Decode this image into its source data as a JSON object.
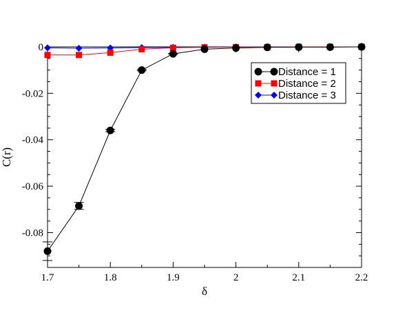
{
  "chart_data": {
    "type": "line",
    "title": "",
    "xlabel": "δ",
    "ylabel": "C(r)",
    "xlim": [
      1.7,
      2.2
    ],
    "ylim": [
      -0.095,
      0.0
    ],
    "x_ticks": [
      "1.7",
      "1.8",
      "1.9",
      "2",
      "2.1",
      "2.2"
    ],
    "x_tick_values": [
      1.7,
      1.8,
      1.9,
      2.0,
      2.1,
      2.2
    ],
    "y_ticks": [
      "0",
      "-0.02",
      "-0.04",
      "-0.06",
      "-0.08"
    ],
    "y_tick_values": [
      0,
      -0.02,
      -0.04,
      -0.06,
      -0.08
    ],
    "grid": false,
    "legend_position": "top-right",
    "x": [
      1.7,
      1.75,
      1.8,
      1.85,
      1.9,
      1.95,
      2.0,
      2.05,
      2.1,
      2.15,
      2.2
    ],
    "series": [
      {
        "name": "Distance = 1",
        "color": "#000000",
        "marker": "circle",
        "values": [
          -0.088,
          -0.0685,
          -0.036,
          -0.01,
          -0.003,
          -0.001,
          -0.0005,
          -0.0002,
          -0.0001,
          -0.0001,
          0.0
        ],
        "errors": [
          0.004,
          0.0015,
          0.0005,
          0.0003,
          0.0002,
          0.0001,
          0.0001,
          0.0001,
          0.0001,
          0.0001,
          0.0001
        ]
      },
      {
        "name": "Distance = 2",
        "color": "#ff0000",
        "marker": "square",
        "values": [
          -0.0035,
          -0.0035,
          -0.0025,
          -0.001,
          -0.0004,
          -0.0002,
          -0.0001,
          -0.0001,
          0.0,
          0.0,
          0.0
        ],
        "errors": [
          0,
          0,
          0,
          0,
          0,
          0,
          0,
          0,
          0,
          0,
          0
        ]
      },
      {
        "name": "Distance = 3",
        "color": "#0000ff",
        "marker": "diamond",
        "values": [
          -0.0004,
          -0.0006,
          -0.0005,
          -0.0003,
          -0.0002,
          -0.0001,
          0.0,
          0.0,
          0.0,
          0.0,
          0.0
        ],
        "errors": [
          0,
          0,
          0,
          0,
          0,
          0,
          0,
          0,
          0,
          0,
          0
        ]
      }
    ]
  }
}
